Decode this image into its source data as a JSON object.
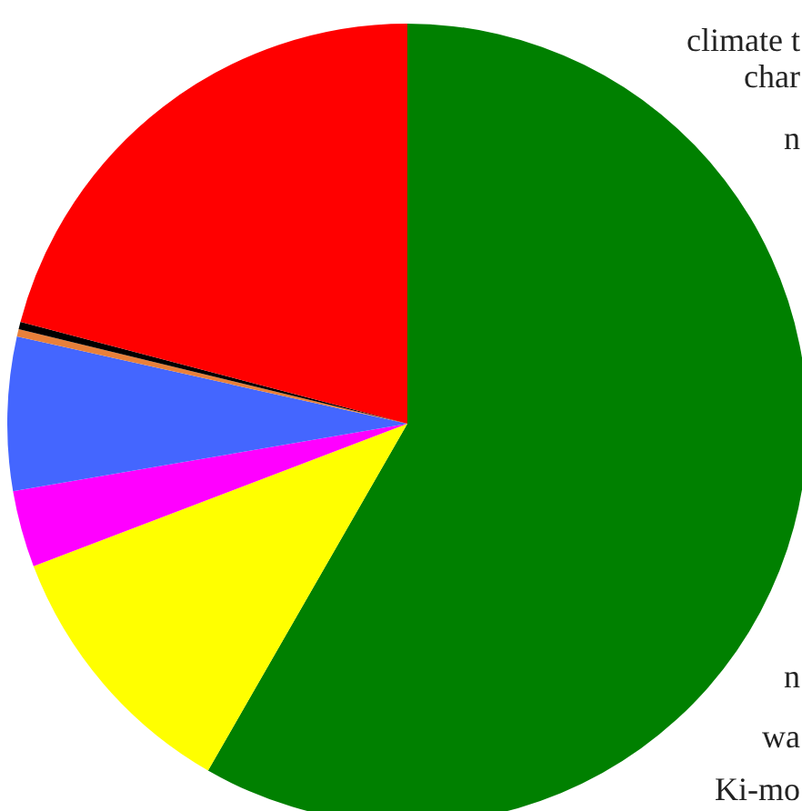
{
  "chart_data": {
    "type": "pie",
    "categories": [
      null,
      null,
      null,
      null,
      null,
      null,
      null
    ],
    "values": [
      58.3,
      10.9,
      3.1,
      6.2,
      0.3,
      0.3,
      20.9
    ],
    "colors": [
      "#008000",
      "#ffff00",
      "#ff00ff",
      "#4466ff",
      "#e8803a",
      "#000000",
      "#ff0000"
    ],
    "annotations": [
      "climate t",
      "char",
      "n",
      "n",
      "wa",
      "Ki-mo"
    ]
  }
}
